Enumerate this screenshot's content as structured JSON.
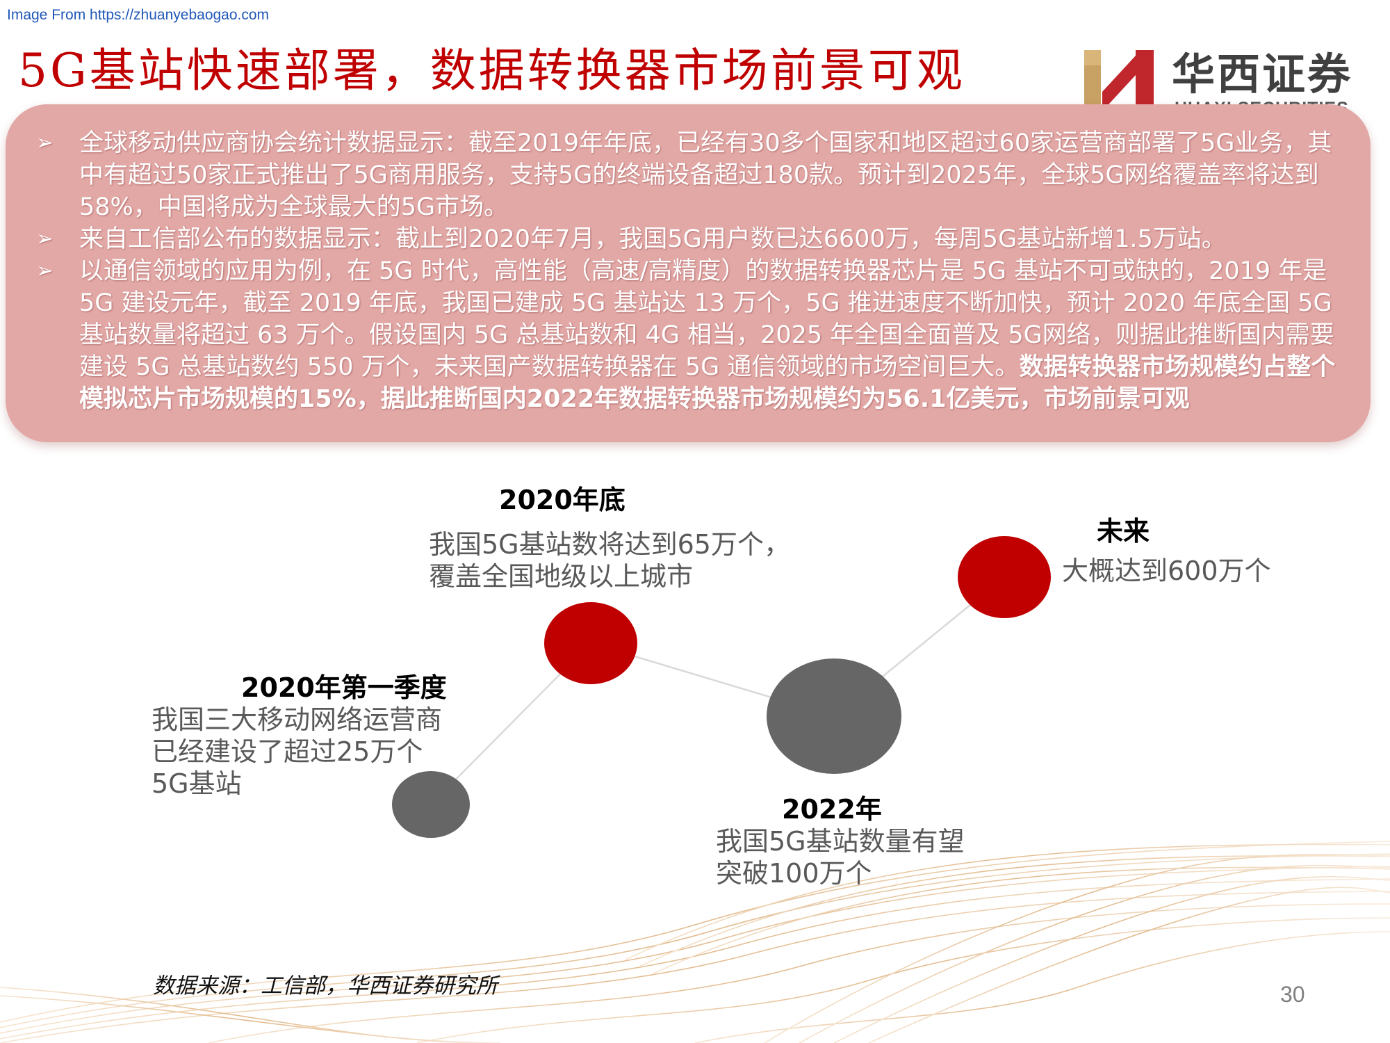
{
  "source_line": "Image From https://zhuanyebaogao.com",
  "title": "5G基站快速部署，数据转换器市场前景可观",
  "logo": {
    "cn": "华西证券",
    "en": "HUAXI SECURITIES"
  },
  "bullets": [
    {
      "text": "全球移动供应商协会统计数据显示：截至2019年年底，已经有30多个国家和地区超过60家运营商部署了5G业务，其中有超过50家正式推出了5G商用服务，支持5G的终端设备超过180款。预计到2025年，全球5G网络覆盖率将达到58%，中国将成为全球最大的5G市场。",
      "bold": ""
    },
    {
      "text": "来自工信部公布的数据显示：截止到2020年7月，我国5G用户数已达6600万，每周5G基站新增1.5万站。",
      "bold": ""
    },
    {
      "text": "以通信领域的应用为例，在 5G 时代，高性能（高速/高精度）的数据转换器芯片是 5G 基站不可或缺的，2019 年是 5G 建设元年，截至 2019 年底，我国已建成 5G 基站达 13 万个，5G 推进速度不断加快，预计 2020 年底全国 5G 基站数量将超过 63 万个。假设国内 5G 总基站数和 4G 相当，2025 年全国全面普及 5G网络，则据此推断国内需要建设 5G 总基站数约 550 万个，未来国产数据转换器在 5G 通信领域的市场空间巨大。",
      "bold": "数据转换器市场规模约占整个模拟芯片市场规模的15%，据此推断国内2022年数据转换器市场规模约为56.1亿美元，市场前景可观"
    }
  ],
  "timeline": [
    {
      "title": "2020年第一季度",
      "desc": [
        "我国三大移动网络运营商",
        "已经建设了超过25万个",
        "5G基站"
      ],
      "color": "#666666"
    },
    {
      "title": "2020年底",
      "desc": [
        "我国5G基站数将达到65万个，",
        "覆盖全国地级以上城市"
      ],
      "color": "#c00000"
    },
    {
      "title": "2022年",
      "desc": [
        "我国5G基站数量有望",
        "突破100万个"
      ],
      "color": "#666666"
    },
    {
      "title": "未来",
      "desc": [
        "大概达到600万个"
      ],
      "color": "#c00000"
    }
  ],
  "source": "数据来源：工信部，华西证券研究所",
  "page_number": "30",
  "colors": {
    "title": "#c00000",
    "panel": "#e2a8a6",
    "accent_red": "#c00000",
    "node_gray": "#666666",
    "logo_gold": "#c8a164"
  }
}
